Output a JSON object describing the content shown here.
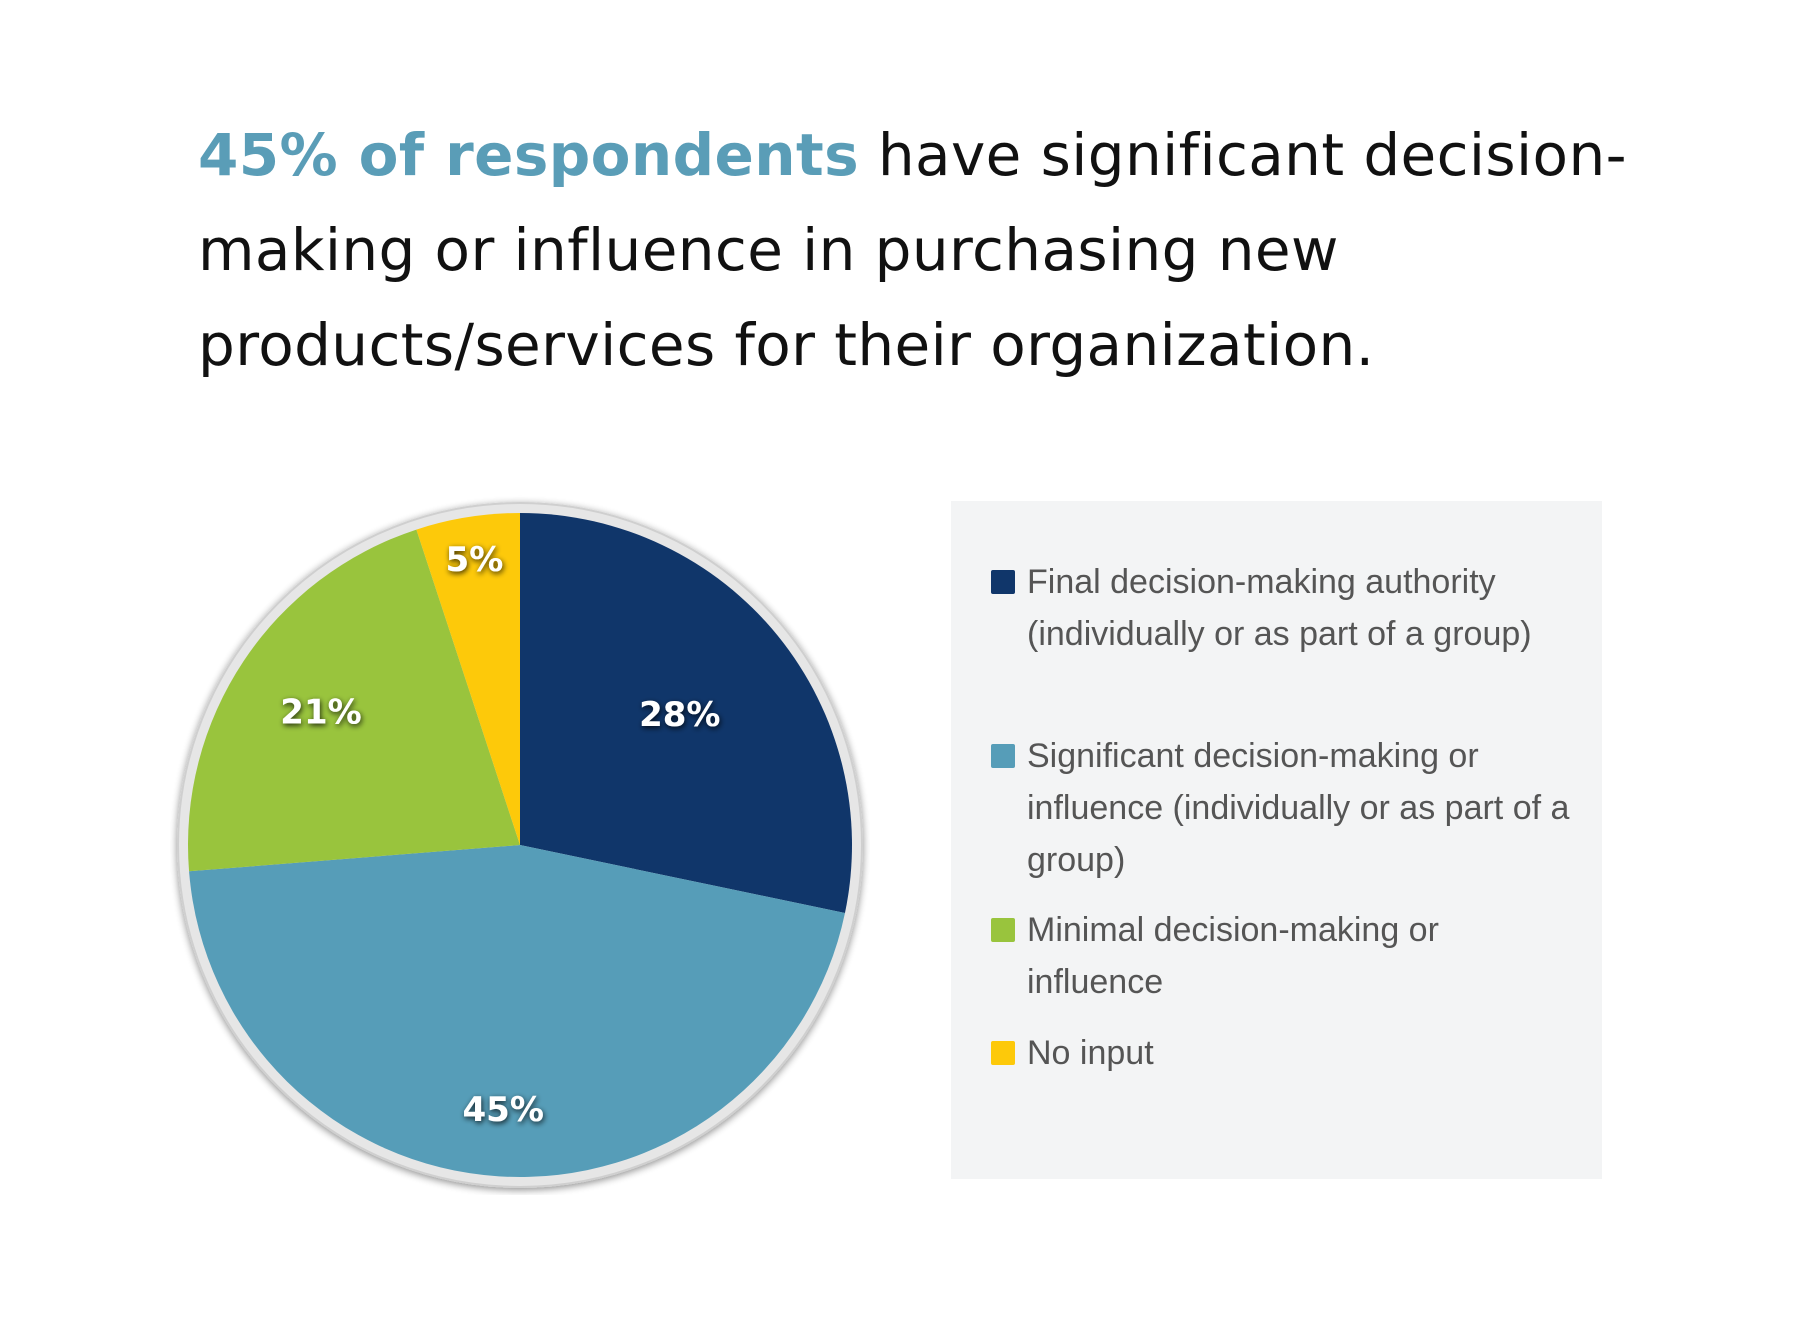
{
  "headline": {
    "highlight": "45% of respondents",
    "rest": " have significant decision-making or influence in purchasing new products/services for their organization."
  },
  "colors": {
    "highlight": "#5a9db7",
    "final": "#10366a",
    "significant": "#569db8",
    "minimal": "#99c43d",
    "no_input": "#fdc90a"
  },
  "chart_data": {
    "type": "pie",
    "title": "",
    "slices": [
      {
        "label": "Final decision-making authority (individually or as part of a group)",
        "value": 28,
        "display": "28%",
        "color": "#10366a"
      },
      {
        "label": "Significant decision-making or influence (individually or as part of a group)",
        "value": 45,
        "display": "45%",
        "color": "#569db8"
      },
      {
        "label": "Minimal decision-making or influence",
        "value": 21,
        "display": "21%",
        "color": "#99c43d"
      },
      {
        "label": "No input",
        "value": 5,
        "display": "5%",
        "color": "#fdc90a"
      }
    ],
    "legend_position": "right"
  }
}
